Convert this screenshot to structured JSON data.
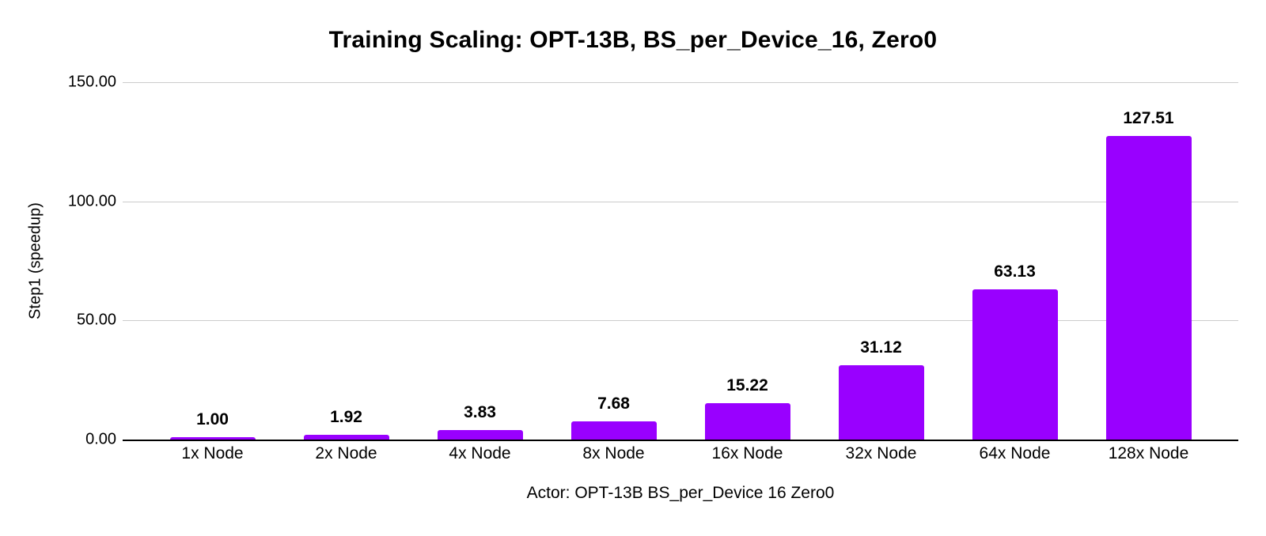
{
  "chart_data": {
    "type": "bar",
    "title": "Training Scaling: OPT-13B, BS_per_Device_16, Zero0",
    "categories": [
      "1x Node",
      "2x Node",
      "4x Node",
      "8x Node",
      "16x Node",
      "32x Node",
      "64x Node",
      "128x Node"
    ],
    "values": [
      1.0,
      1.92,
      3.83,
      7.68,
      15.22,
      31.12,
      63.13,
      127.51
    ],
    "value_labels": [
      "1.00",
      "1.92",
      "3.83",
      "7.68",
      "15.22",
      "31.12",
      "63.13",
      "127.51"
    ],
    "xlabel": "Actor: OPT-13B BS_per_Device 16 Zero0",
    "ylabel": "Step1 (speedup)",
    "ylim": [
      0,
      150
    ],
    "yticks": [
      0,
      50,
      100,
      150
    ],
    "ytick_labels": [
      "0.00",
      "50.00",
      "100.00",
      "150.00"
    ],
    "grid": true,
    "legend_position": "none",
    "bar_color": "#9900ff",
    "gridline_color": "#cccccc",
    "axis_color": "#000000",
    "background_color": "#ffffff"
  }
}
